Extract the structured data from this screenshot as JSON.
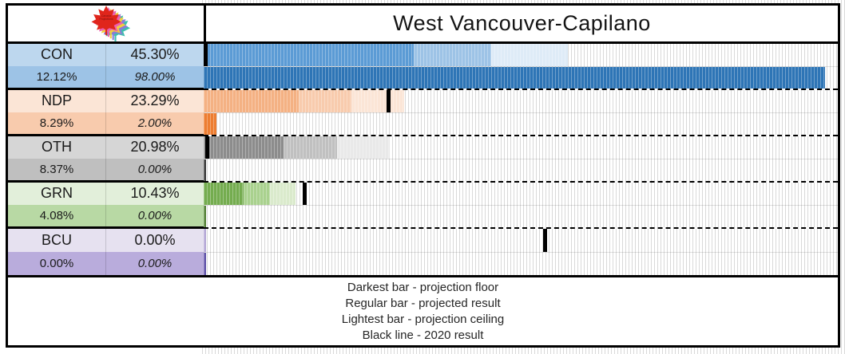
{
  "header": {
    "title": "West Vancouver-Capilano"
  },
  "logo": {
    "name": "canada-projections-maple-leaf-logo",
    "text_line1": "Canada",
    "text_line2": "Projections",
    "leaf_colors": [
      "#3FBFAE",
      "#8A7BD8",
      "#F2CE3C",
      "#EC5FB1",
      "#E0251B"
    ],
    "text_color": "#7c1312"
  },
  "legend": {
    "lines": [
      "Darkest bar - projection floor",
      "Regular bar - projected result",
      "Lightest bar - projection ceiling",
      "Black line - 2020 result"
    ]
  },
  "axis": {
    "min_pct": 0,
    "max_pct": 100
  },
  "parties": [
    {
      "code": "CON",
      "projected_label": "45.30%",
      "margin_label": "12.12%",
      "probability_label": "98.00%",
      "values": {
        "floor": 33.18,
        "projected": 45.3,
        "ceiling": 57.42,
        "probability": 98.0,
        "result_2020": 0.0
      },
      "colors": {
        "cell_top": "#BDD7EE",
        "cell_bottom": "#9DC3E6",
        "floor": "#5B9BD5",
        "regular": "#9DC3E6",
        "ceiling": "#DEEBF7",
        "probability": "#2E75B6"
      }
    },
    {
      "code": "NDP",
      "projected_label": "23.29%",
      "margin_label": "8.29%",
      "probability_label": "2.00%",
      "values": {
        "floor": 15.0,
        "projected": 23.29,
        "ceiling": 31.58,
        "probability": 2.0,
        "result_2020": 29.1
      },
      "colors": {
        "cell_top": "#FBE5D6",
        "cell_bottom": "#F8CBAD",
        "floor": "#F4B183",
        "regular": "#F8CBAD",
        "ceiling": "#FBE5D6",
        "probability": "#ED7D31"
      }
    },
    {
      "code": "OTH",
      "projected_label": "20.98%",
      "margin_label": "8.37%",
      "probability_label": "0.00%",
      "values": {
        "floor": 12.61,
        "projected": 20.98,
        "ceiling": 29.35,
        "probability": 0.0,
        "result_2020": 0.6
      },
      "colors": {
        "cell_top": "#D6D6D6",
        "cell_bottom": "#BFBFBF",
        "floor": "#8C8C8C",
        "regular": "#C0C0C0",
        "ceiling": "#E9E9E9",
        "probability": "#3B3B3B"
      }
    },
    {
      "code": "GRN",
      "projected_label": "10.43%",
      "margin_label": "4.08%",
      "probability_label": "0.00%",
      "values": {
        "floor": 6.35,
        "projected": 10.43,
        "ceiling": 14.51,
        "probability": 0.0,
        "result_2020": 15.9
      },
      "colors": {
        "cell_top": "#E2EFDA",
        "cell_bottom": "#B8D9A4",
        "floor": "#74AC4F",
        "regular": "#A9D18E",
        "ceiling": "#DAEACC",
        "probability": "#538135"
      }
    },
    {
      "code": "BCU",
      "projected_label": "0.00%",
      "margin_label": "0.00%",
      "probability_label": "0.00%",
      "values": {
        "floor": 0.0,
        "projected": 0.0,
        "ceiling": 0.0,
        "probability": 0.0,
        "result_2020": 53.9
      },
      "colors": {
        "cell_top": "#E6E1F0",
        "cell_bottom": "#B9ACDC",
        "floor": "#B4A7D6",
        "regular": "#C8BFE2",
        "ceiling": "#E4DFF0",
        "probability": "#5F51A8"
      }
    }
  ],
  "chart_data": {
    "type": "bar",
    "orientation": "horizontal",
    "title": "West Vancouver-Capilano",
    "categories": [
      "CON",
      "NDP",
      "OTH",
      "GRN",
      "BCU"
    ],
    "series": [
      {
        "name": "projected_result",
        "values": [
          45.3,
          23.29,
          20.98,
          10.43,
          0.0
        ]
      },
      {
        "name": "margin",
        "values": [
          12.12,
          8.29,
          8.37,
          4.08,
          0.0
        ]
      },
      {
        "name": "projection_floor",
        "values": [
          33.18,
          15.0,
          12.61,
          6.35,
          0.0
        ]
      },
      {
        "name": "projection_ceiling",
        "values": [
          57.42,
          31.58,
          29.35,
          14.51,
          0.0
        ]
      },
      {
        "name": "win_probability",
        "values": [
          98.0,
          2.0,
          0.0,
          0.0,
          0.0
        ]
      },
      {
        "name": "result_2020",
        "values": [
          0.0,
          29.1,
          0.6,
          15.9,
          53.9
        ]
      }
    ],
    "xlim": [
      0,
      100
    ],
    "grid": "vertical-stripes",
    "legend_position": "bottom",
    "legend_entries": [
      "Darkest bar - projection floor",
      "Regular bar - projected result",
      "Lightest bar - projection ceiling",
      "Black line - 2020 result"
    ]
  }
}
